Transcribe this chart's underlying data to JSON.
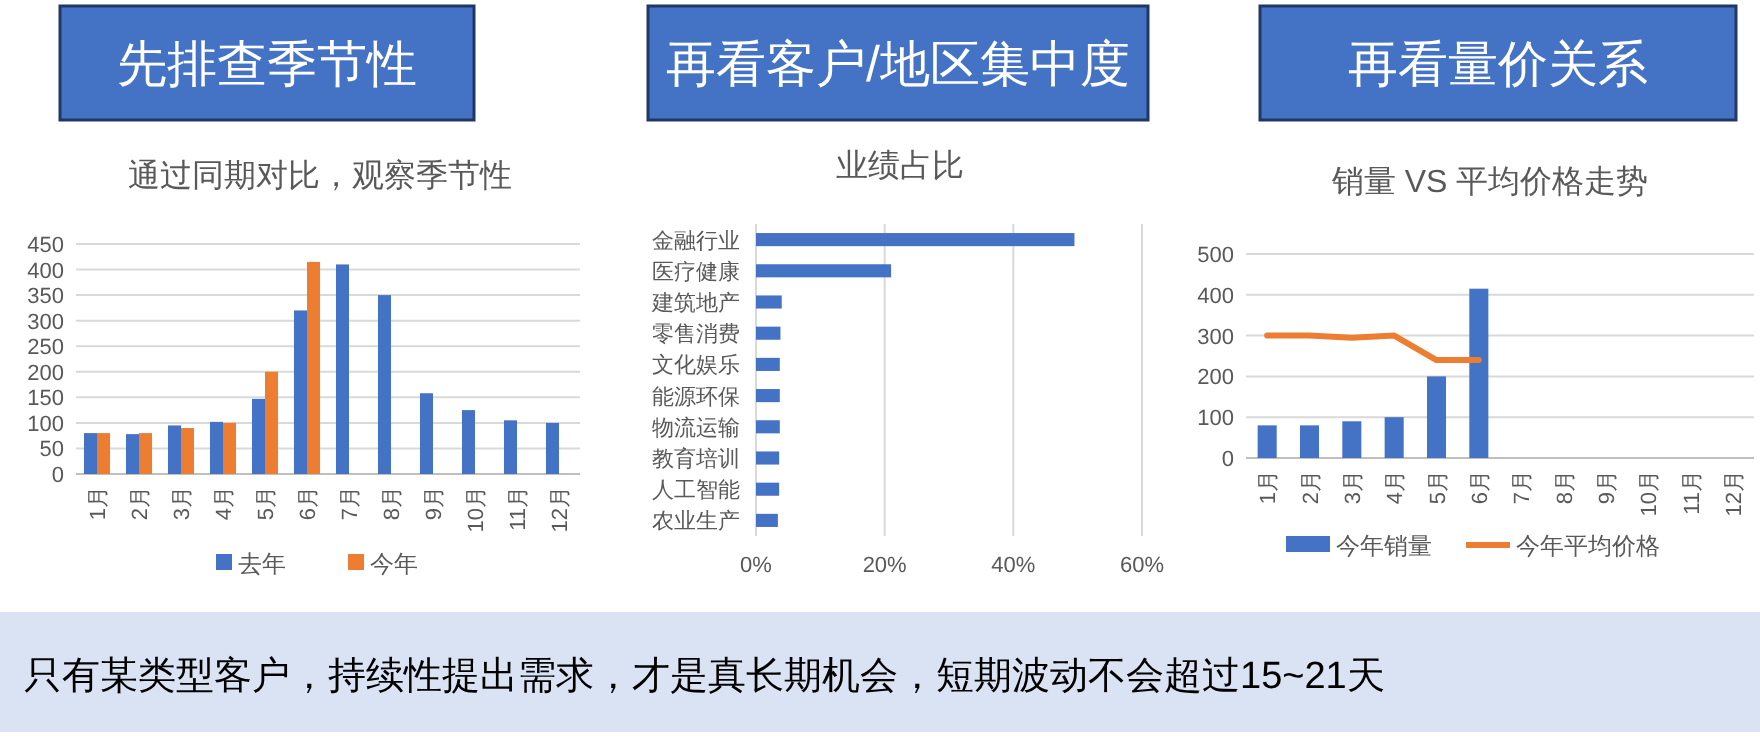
{
  "chart_data": [
    {
      "type": "bar",
      "title": "先排查季节性",
      "subtitle": "通过同期对比，观察季节性",
      "categories": [
        "1月",
        "2月",
        "3月",
        "4月",
        "5月",
        "6月",
        "7月",
        "8月",
        "9月",
        "10月",
        "11月",
        "12月"
      ],
      "series": [
        {
          "name": "去年",
          "color": "#4472c4",
          "values": [
            80,
            78,
            95,
            102,
            147,
            320,
            410,
            350,
            158,
            125,
            105,
            100
          ]
        },
        {
          "name": "今年",
          "color": "#ed7d31",
          "values": [
            80,
            80,
            90,
            100,
            200,
            415,
            null,
            null,
            null,
            null,
            null,
            null
          ]
        }
      ],
      "ylim": [
        0,
        450
      ],
      "yticks": [
        0,
        50,
        100,
        150,
        200,
        250,
        300,
        350,
        400,
        450
      ],
      "grid": "y",
      "legend": "bottom"
    },
    {
      "type": "bar",
      "orientation": "horizontal",
      "title": "再看客户/地区集中度",
      "subtitle": "业绩占比",
      "categories": [
        "金融行业",
        "医疗健康",
        "建筑地产",
        "零售消费",
        "文化娱乐",
        "能源环保",
        "物流运输",
        "教育培训",
        "人工智能",
        "农业生产"
      ],
      "values": [
        49.5,
        21,
        4,
        3.8,
        3.7,
        3.7,
        3.7,
        3.6,
        3.6,
        3.4
      ],
      "color": "#4472c4",
      "xlim": [
        0,
        60
      ],
      "xticks": [
        {
          "value": 0,
          "label": "0%"
        },
        {
          "value": 20,
          "label": "20%"
        },
        {
          "value": 40,
          "label": "40%"
        },
        {
          "value": 60,
          "label": "60%"
        }
      ],
      "grid": "x"
    },
    {
      "type": "bar",
      "title": "再看量价关系",
      "subtitle": "销量 VS 平均价格走势",
      "categories": [
        "1月",
        "2月",
        "3月",
        "4月",
        "5月",
        "6月",
        "7月",
        "8月",
        "9月",
        "10月",
        "11月",
        "12月"
      ],
      "series": [
        {
          "name": "今年销量",
          "type": "bar",
          "color": "#4472c4",
          "values": [
            80,
            80,
            90,
            100,
            200,
            415,
            null,
            null,
            null,
            null,
            null,
            null
          ]
        },
        {
          "name": "今年平均价格",
          "type": "line",
          "color": "#ed7d31",
          "values": [
            300,
            300,
            295,
            300,
            240,
            240,
            null,
            null,
            null,
            null,
            null,
            null
          ]
        }
      ],
      "ylim": [
        0,
        500
      ],
      "yticks": [
        0,
        100,
        200,
        300,
        400,
        500
      ],
      "grid": "y",
      "legend": "bottom"
    },
    {
      "type": "other",
      "annotations": [
        "只有某类型客户，持续性提出需求，才是真长期机会，短期波动不会超过15~21天"
      ]
    }
  ]
}
